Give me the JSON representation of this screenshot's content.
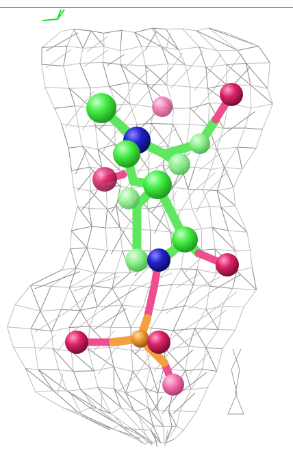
{
  "viewer": {
    "background": "#ffffff",
    "mesh_color": "#c8c8c8",
    "mesh_dark": "#8a8a8a",
    "axis_color": "#19e61f",
    "atom_colors": {
      "carbon": "#44ee44",
      "nitrogen": "#2222cc",
      "oxygen": "#dd2266",
      "oxygen_light": "#ee5599",
      "phosphorus": "#ee9933"
    },
    "icons": [
      "axis-indicator-icon",
      "electron-density-mesh",
      "ball-and-stick-molecule"
    ]
  }
}
